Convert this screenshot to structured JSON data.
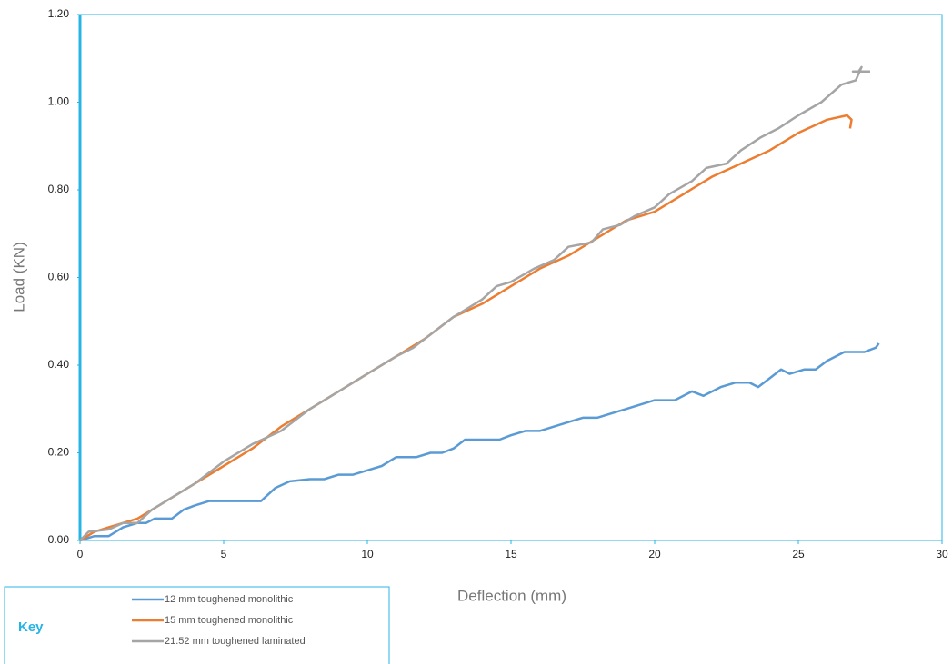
{
  "chart_data": {
    "type": "line",
    "xlabel": "Deflection (mm)",
    "ylabel": "Load (KN)",
    "legend_title": "Key",
    "xlim": [
      0,
      30
    ],
    "xticks": [
      0,
      5,
      10,
      15,
      20,
      25,
      30
    ],
    "ylim": [
      0,
      1.2
    ],
    "yticks": [
      {
        "value": 0,
        "label": "0.00"
      },
      {
        "value": 0.2,
        "label": "0.20"
      },
      {
        "value": 0.4,
        "label": "0.40"
      },
      {
        "value": 0.6,
        "label": "0.60"
      },
      {
        "value": 0.8,
        "label": "0.80"
      },
      {
        "value": 1.0,
        "label": "1.00"
      },
      {
        "value": 1.2,
        "label": "1.20"
      }
    ],
    "series": [
      {
        "name": "12 mm toughened monolithic",
        "color": "#5b9bd5",
        "x": [
          0,
          0.5,
          1,
          1.5,
          2,
          2.3,
          2.6,
          3.2,
          3.6,
          4,
          4.5,
          5,
          5.5,
          6,
          6.3,
          6.8,
          7.3,
          8,
          8.5,
          9,
          9.5,
          10,
          10.5,
          11,
          11.7,
          12.2,
          12.6,
          13,
          13.4,
          14,
          14.6,
          15,
          15.5,
          16,
          16.5,
          17,
          17.5,
          18,
          18.5,
          19,
          19.5,
          20,
          20.7,
          21.3,
          21.7,
          22.3,
          22.8,
          23.3,
          23.6,
          24,
          24.4,
          24.7,
          25.2,
          25.6,
          26,
          26.3,
          26.6,
          27.3,
          27.7,
          27.8
        ],
        "values": [
          0,
          0.01,
          0.01,
          0.03,
          0.04,
          0.04,
          0.05,
          0.05,
          0.07,
          0.08,
          0.09,
          0.09,
          0.09,
          0.09,
          0.09,
          0.12,
          0.135,
          0.14,
          0.14,
          0.15,
          0.15,
          0.16,
          0.17,
          0.19,
          0.19,
          0.2,
          0.2,
          0.21,
          0.23,
          0.23,
          0.23,
          0.24,
          0.25,
          0.25,
          0.26,
          0.27,
          0.28,
          0.28,
          0.29,
          0.3,
          0.31,
          0.32,
          0.32,
          0.34,
          0.33,
          0.35,
          0.36,
          0.36,
          0.35,
          0.37,
          0.39,
          0.38,
          0.39,
          0.39,
          0.41,
          0.42,
          0.43,
          0.43,
          0.44,
          0.45
        ]
      },
      {
        "name": "15 mm toughened monolithic",
        "color": "#ed7d31",
        "x": [
          0,
          0.5,
          1,
          1.5,
          2,
          3,
          4,
          5,
          6,
          7,
          8,
          9,
          10,
          11,
          12,
          13,
          14,
          15,
          16,
          17,
          18,
          18.5,
          19,
          20,
          21,
          22,
          23,
          24,
          25,
          26,
          26.7,
          26.85,
          26.8
        ],
        "values": [
          0,
          0.02,
          0.03,
          0.04,
          0.05,
          0.09,
          0.13,
          0.17,
          0.21,
          0.26,
          0.3,
          0.34,
          0.38,
          0.42,
          0.46,
          0.51,
          0.54,
          0.58,
          0.62,
          0.65,
          0.69,
          0.71,
          0.73,
          0.75,
          0.79,
          0.83,
          0.86,
          0.89,
          0.93,
          0.96,
          0.97,
          0.96,
          0.94
        ]
      },
      {
        "name": "21.52 mm toughened laminated",
        "color": "#a5a5a5",
        "x": [
          0,
          0.3,
          1,
          1.5,
          2,
          2.5,
          3,
          4,
          5,
          6,
          7,
          8,
          9,
          10,
          11,
          11.6,
          12,
          13,
          14,
          14.5,
          15,
          15.8,
          16.5,
          17,
          17.8,
          18.2,
          18.8,
          19.3,
          20,
          20.5,
          21.3,
          21.8,
          22.5,
          23,
          23.7,
          24.3,
          25,
          25.8,
          26.5,
          27,
          27.2,
          27.1,
          26.9,
          27.5
        ],
        "values": [
          0,
          0.02,
          0.025,
          0.04,
          0.04,
          0.07,
          0.09,
          0.13,
          0.18,
          0.22,
          0.25,
          0.3,
          0.34,
          0.38,
          0.42,
          0.44,
          0.46,
          0.51,
          0.55,
          0.58,
          0.59,
          0.62,
          0.64,
          0.67,
          0.68,
          0.71,
          0.72,
          0.74,
          0.76,
          0.79,
          0.82,
          0.85,
          0.86,
          0.89,
          0.92,
          0.94,
          0.97,
          1.0,
          1.04,
          1.05,
          1.08,
          1.07,
          1.07,
          1.07
        ]
      }
    ]
  }
}
